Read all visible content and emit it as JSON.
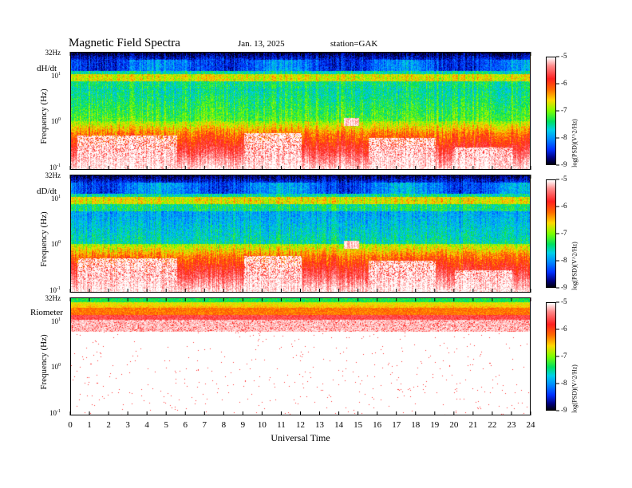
{
  "header": {
    "title": "Magnetic  Field  Spectra",
    "date": "Jan. 13, 2025",
    "station": "station=GAK"
  },
  "chart_data": {
    "type": "heatmap",
    "xlabel": "Universal Time",
    "xlim": [
      0,
      24
    ],
    "x_ticks": [
      "0",
      "1",
      "2",
      "3",
      "4",
      "5",
      "6",
      "7",
      "8",
      "9",
      "10",
      "11",
      "12",
      "13",
      "14",
      "15",
      "16",
      "17",
      "18",
      "19",
      "20",
      "21",
      "22",
      "23",
      "24"
    ],
    "y_scale": "log",
    "ylim_hz": [
      0.1,
      32
    ],
    "colorbar": {
      "label": "log(PSD)(V^2/Hz)",
      "range": [
        -9,
        -5
      ],
      "ticks": [
        "-5",
        "-6",
        "-7",
        "-8",
        "-9"
      ]
    },
    "panels": [
      {
        "name": "dH/dt",
        "ylabel": "Frequency  (Hz)",
        "y_ticks": {
          "top": "32Hz",
          "ten": "10",
          "ten_exp": "1",
          "one": "10",
          "one_exp": "0",
          "tenth": "10",
          "tenth_exp": "-1"
        }
      },
      {
        "name": "dD/dt",
        "ylabel": "Frequency  (Hz)",
        "y_ticks": {
          "top": "32Hz",
          "ten": "10",
          "ten_exp": "1",
          "one": "10",
          "one_exp": "0",
          "tenth": "10",
          "tenth_exp": "-1"
        }
      },
      {
        "name": "Riometer",
        "ylabel": "Frequency  (Hz)",
        "y_ticks": {
          "top": "32Hz",
          "ten": "10",
          "ten_exp": "1",
          "one": "10",
          "one_exp": "0",
          "tenth": "10",
          "tenth_exp": "-1"
        }
      }
    ]
  }
}
